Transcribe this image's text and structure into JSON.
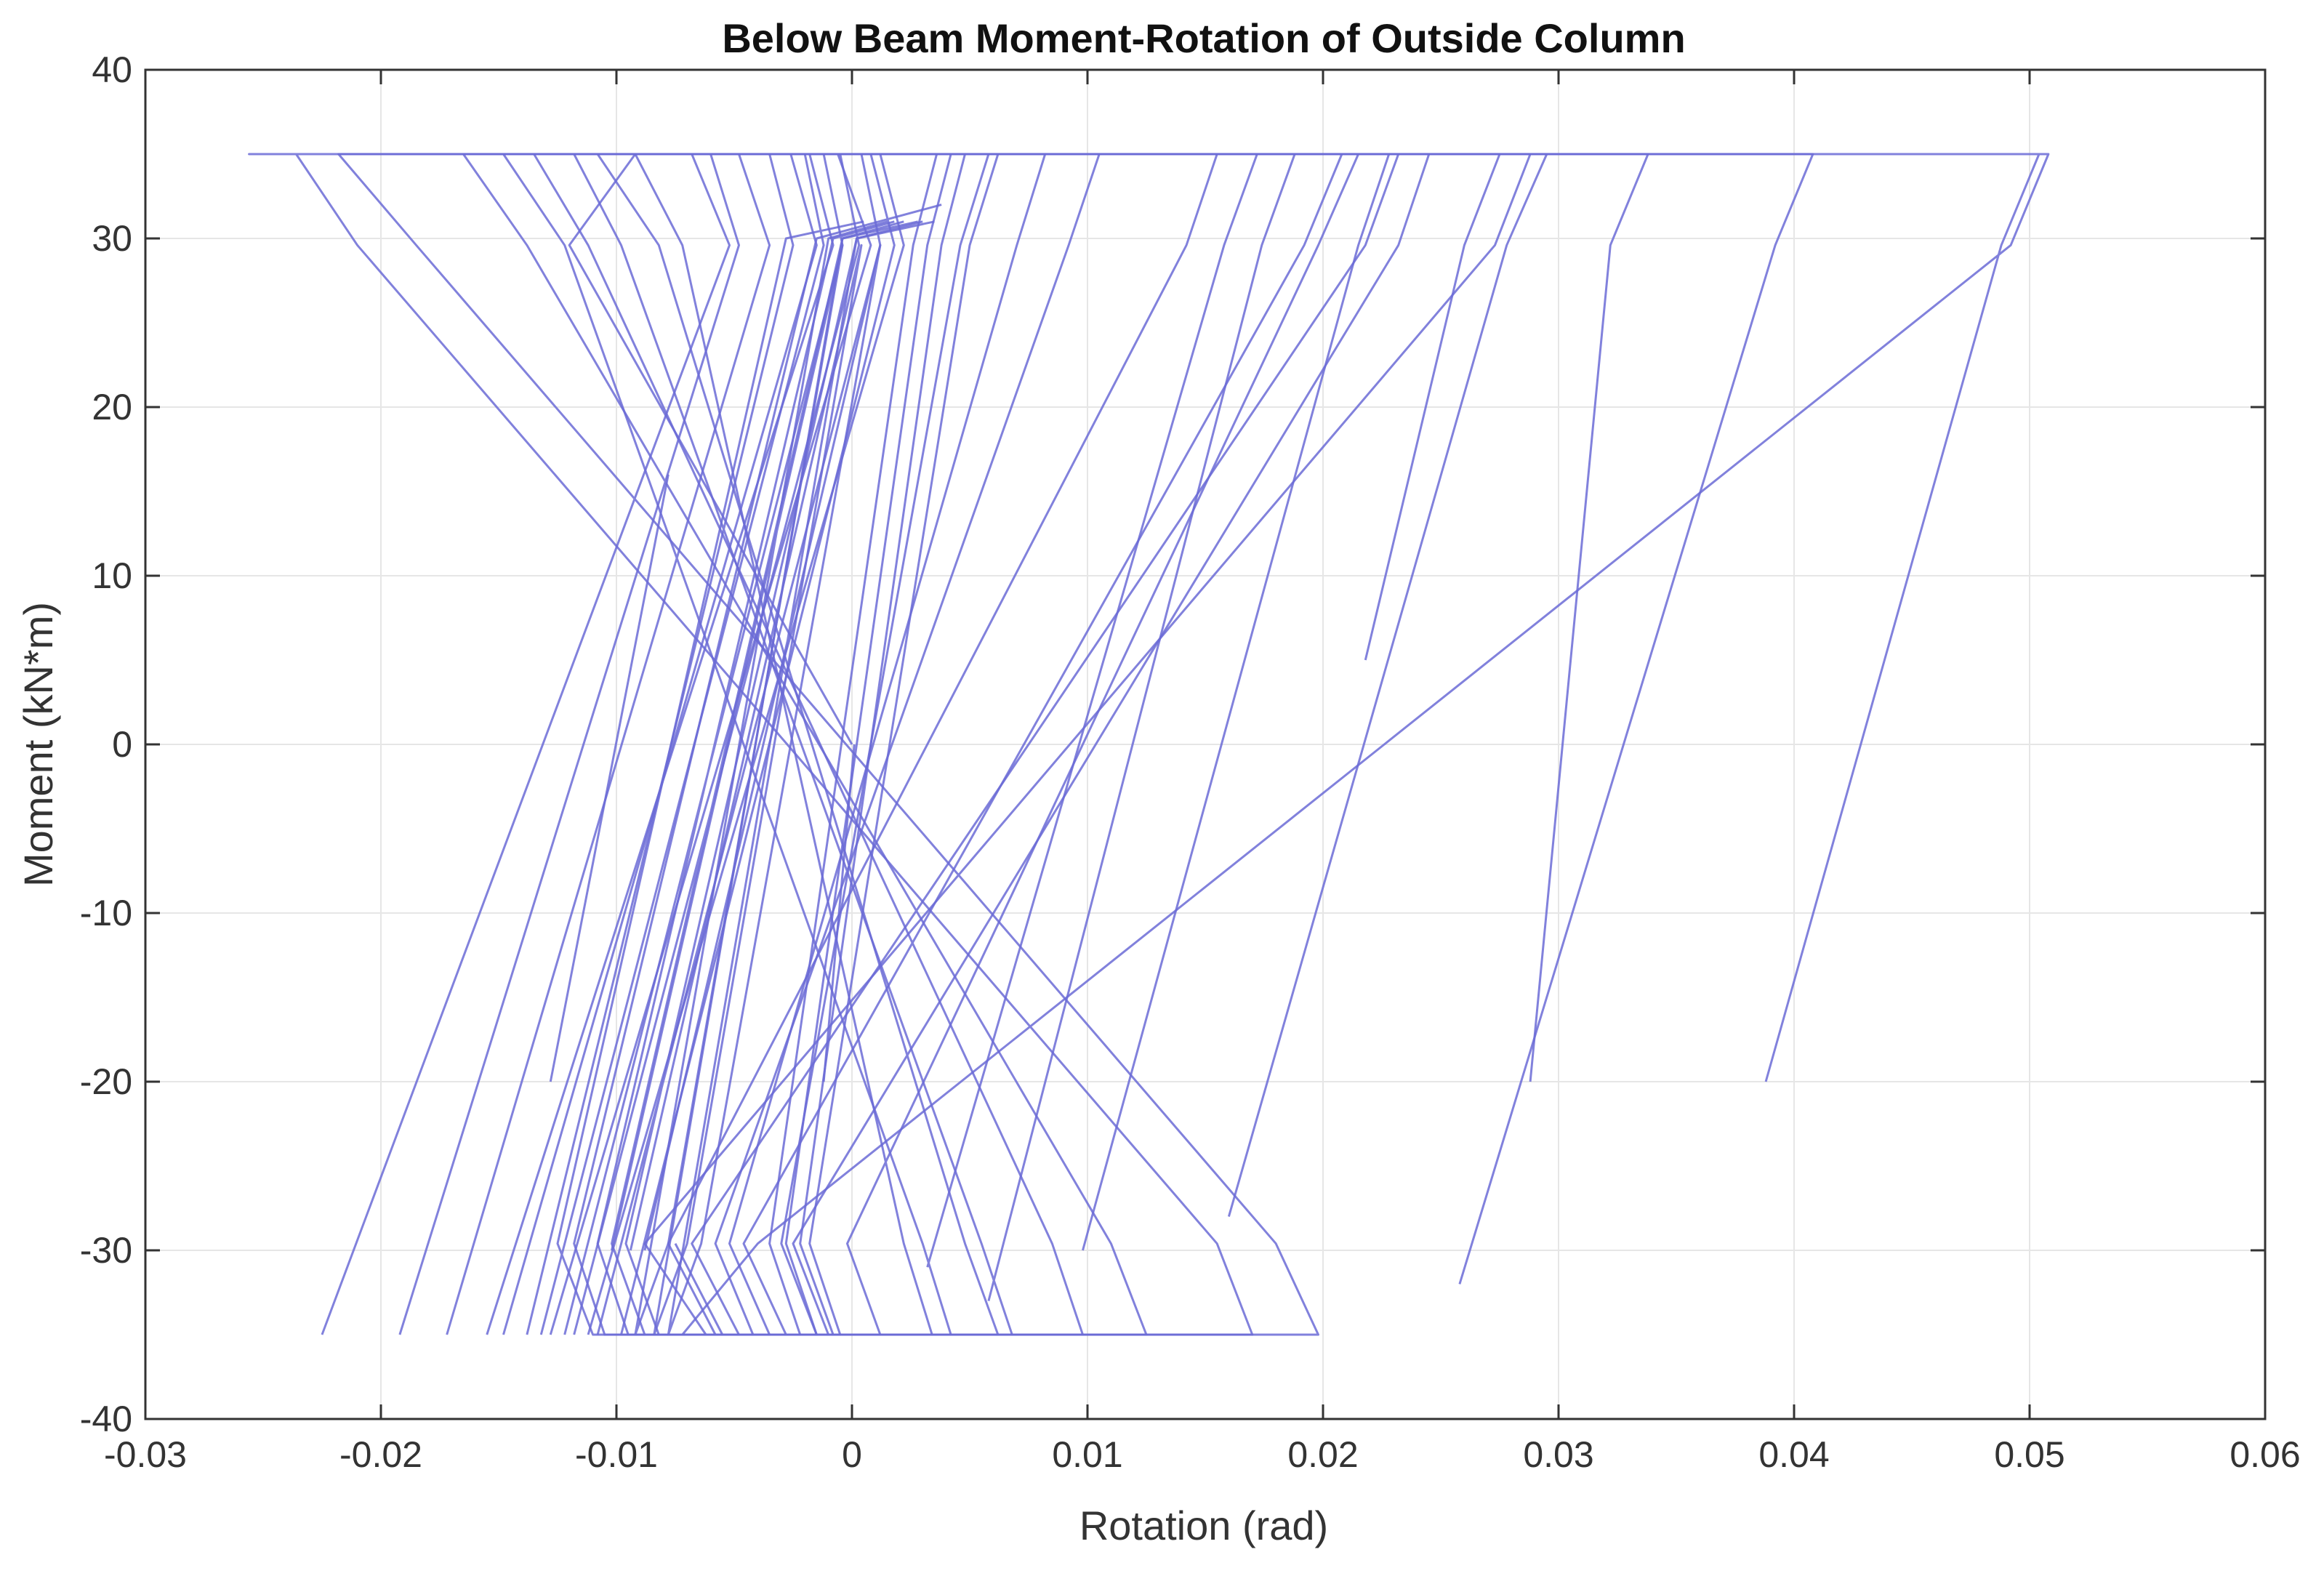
{
  "chart_data": {
    "type": "line",
    "title": "Below Beam Moment-Rotation of Outside Column",
    "xlabel": "Rotation (rad)",
    "ylabel": "Moment (kN*m)",
    "xlim": [
      -0.03,
      0.06
    ],
    "ylim": [
      -40,
      40
    ],
    "xticks": [
      -0.03,
      -0.02,
      -0.01,
      0,
      0.01,
      0.02,
      0.03,
      0.04,
      0.05,
      0.06
    ],
    "xtick_labels": [
      "-0.03",
      "-0.02",
      "-0.01",
      "0",
      "0.01",
      "0.02",
      "0.03",
      "0.04",
      "0.05",
      "0.06"
    ],
    "yticks": [
      -40,
      -30,
      -20,
      -10,
      0,
      10,
      20,
      30,
      40
    ],
    "ytick_labels": [
      "-40",
      "-30",
      "-20",
      "-10",
      "0",
      "10",
      "20",
      "30",
      "40"
    ],
    "grid": true,
    "line_color": "#6b6bd6",
    "series": [
      {
        "x": [
          0,
          -0.012,
          -0.0092,
          0.0508,
          0.0492,
          -0.004,
          -0.0072,
          -0.0046,
          0.017,
          0.0155,
          -0.021,
          -0.0236,
          -0.0256,
          -0.009,
          0.0504,
          0.0488,
          0.0388
        ],
        "y": [
          0,
          29.6,
          35,
          35,
          29.6,
          -29.6,
          -35,
          -35,
          -35,
          -29.6,
          29.6,
          35,
          35,
          35,
          35,
          29.6,
          -20
        ]
      },
      {
        "x": [
          -0.0225,
          -0.0052,
          -0.0068,
          0.0288,
          0.0273,
          -0.0088,
          -0.0062,
          0.0198,
          0.018,
          -0.0185,
          -0.0218,
          0.002,
          0.0408,
          0.0392,
          0.0258
        ],
        "y": [
          -35,
          29.6,
          35,
          35,
          29.6,
          -29.6,
          -35,
          -35,
          -29.6,
          29.6,
          35,
          35,
          35,
          29.6,
          -32
        ]
      },
      {
        "x": [
          -0.0192,
          -0.0048,
          -0.006,
          0.0232,
          0.0218,
          -0.0068,
          -0.0048,
          0.0125,
          0.011,
          -0.0138,
          -0.0165,
          0.004,
          0.0338,
          0.0322,
          0.0288
        ],
        "y": [
          -35,
          29.6,
          35,
          35,
          29.6,
          -29.6,
          -35,
          -35,
          -29.6,
          29.6,
          35,
          35,
          35,
          29.6,
          -20
        ]
      },
      {
        "x": [
          -0.0155,
          -0.0008,
          -0.0018,
          0.0208,
          0.0192,
          -0.0046,
          -0.0028,
          0.0098,
          0.0085,
          -0.0112,
          -0.0135,
          0.0085,
          0.0295,
          0.0278,
          0.016
        ],
        "y": [
          -35,
          29.6,
          35,
          35,
          29.6,
          -29.6,
          -35,
          -35,
          -29.6,
          29.6,
          35,
          35,
          35,
          29.6,
          -28
        ]
      },
      {
        "x": [
          -0.0128,
          0.0008,
          -0.0006,
          0.0245,
          0.0232,
          -0.0025,
          -0.001,
          0.0062,
          0.0048,
          -0.0082,
          -0.0108,
          0.0062,
          0.0275,
          0.026,
          0.0218
        ],
        "y": [
          -35,
          29.6,
          35,
          35,
          29.6,
          -29.6,
          -35,
          -35,
          -29.6,
          29.6,
          35,
          35,
          35,
          29.6,
          5
        ]
      },
      {
        "x": [
          -0.0112,
          0.0022,
          0.0012,
          0.0215,
          0.0198,
          -0.0002,
          0.0012,
          0.0034,
          0.0022,
          -0.0072,
          -0.0092,
          0.0082,
          0.0228,
          0.0215,
          0.0098
        ],
        "y": [
          -35,
          29.6,
          35,
          35,
          29.6,
          -29.6,
          -35,
          -35,
          -29.6,
          29.6,
          35,
          35,
          35,
          29.6,
          -30
        ]
      },
      {
        "x": [
          -0.0138,
          -0.0025,
          -0.0035,
          0.0105,
          0.0092,
          -0.0058,
          -0.0042,
          0.0068,
          0.0055,
          -0.0098,
          -0.0118,
          0.0015,
          0.0188,
          0.0174,
          0.0058
        ],
        "y": [
          -35,
          29.6,
          35,
          35,
          29.6,
          -29.6,
          -35,
          -35,
          -29.6,
          29.6,
          35,
          35,
          35,
          29.6,
          -33
        ]
      },
      {
        "x": [
          -0.0172,
          -0.0035,
          -0.0048,
          0.0155,
          0.0142,
          -0.0078,
          -0.0058,
          0.0042,
          0.003,
          -0.0122,
          -0.0148,
          -0.0012,
          0.0172,
          0.0158,
          0.0032
        ],
        "y": [
          -35,
          29.6,
          35,
          35,
          29.6,
          -29.6,
          -35,
          -35,
          -29.6,
          29.6,
          35,
          35,
          35,
          29.6,
          -31
        ]
      },
      {
        "x": [
          -0.0148,
          -0.0015,
          -0.0026,
          0.0082,
          0.007,
          -0.0052,
          -0.0035,
          -0.0055,
          -0.0075
        ],
        "y": [
          -35,
          29.6,
          35,
          35,
          29.6,
          -29.6,
          -35,
          -35,
          -29.6
        ]
      },
      {
        "x": [
          -0.0098,
          0.0018,
          0.0008,
          0.0062,
          0.005,
          -0.0018,
          -0.0005,
          -0.0105,
          -0.0118,
          -0.0015,
          0.0038
        ],
        "y": [
          -35,
          29.6,
          35,
          35,
          29.6,
          -29.6,
          -35,
          -35,
          -29.6,
          30,
          32
        ]
      },
      {
        "x": [
          -0.0132,
          -0.0012,
          -0.002,
          0.0058,
          0.0046,
          -0.003,
          -0.0015,
          -0.011,
          -0.0125,
          -0.0028,
          0.0005
        ],
        "y": [
          -35,
          29.6,
          35,
          35,
          29.6,
          -29.6,
          -35,
          -35,
          -29.6,
          30,
          31
        ]
      },
      {
        "x": [
          -0.0122,
          -0.0004,
          -0.0012,
          0.0036,
          0.0026,
          -0.0035,
          -0.0022,
          -0.0095,
          -0.0108,
          -0.0008,
          0.0018
        ],
        "y": [
          -35,
          29.6,
          35,
          35,
          29.6,
          -29.6,
          -35,
          -35,
          -29.6,
          30,
          31
        ]
      },
      {
        "x": [
          -0.0118,
          0.0003,
          -0.0005,
          0.0042,
          0.0032,
          -0.0028,
          -0.0015,
          -0.0088,
          -0.0102,
          -0.0004,
          0.0028
        ],
        "y": [
          -35,
          29.6,
          35,
          35,
          29.6,
          -29.6,
          -35,
          -35,
          -29.6,
          30,
          31
        ]
      },
      {
        "x": [
          -0.0108,
          0.0012,
          0.0004,
          0.0048,
          0.0038,
          -0.0022,
          -0.0008,
          -0.0082,
          -0.0096,
          0.0002,
          0.0035
        ],
        "y": [
          -35,
          29.6,
          35,
          35,
          29.6,
          -29.6,
          -35,
          -35,
          -29.6,
          30,
          31
        ]
      },
      {
        "x": [
          -0.0102,
          -0.0004,
          -0.0078,
          -0.0092,
          -0.001,
          0.0015
        ],
        "y": [
          -30,
          29.6,
          -29.6,
          -35,
          30,
          31
        ]
      },
      {
        "x": [
          -0.0094,
          0.0004,
          -0.007,
          -0.0084,
          -0.0004,
          0.0022
        ],
        "y": [
          -30,
          29.6,
          -29.6,
          -35,
          30,
          31
        ]
      },
      {
        "x": [
          -0.0088,
          0.0012,
          -0.0064,
          -0.0078,
          0.0002,
          0.003
        ],
        "y": [
          -30,
          29.6,
          -29.6,
          -35,
          30,
          31
        ]
      },
      {
        "x": [
          -0.0128,
          -0.0078
        ],
        "y": [
          -20,
          16
        ]
      },
      {
        "x": [
          -0.0012,
          0.0001
        ],
        "y": [
          -20,
          0
        ]
      }
    ]
  }
}
